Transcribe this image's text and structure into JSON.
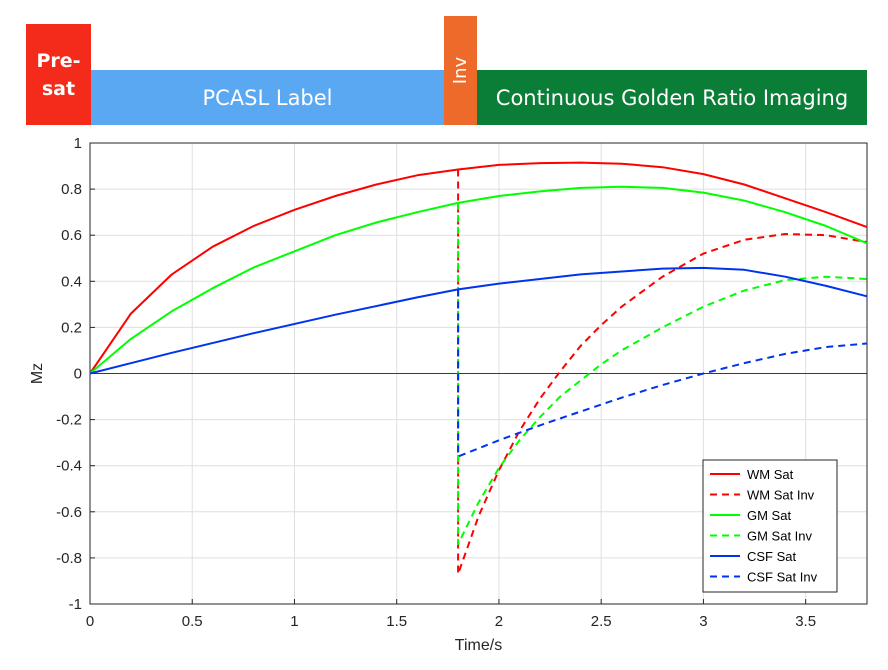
{
  "phases": {
    "presat": {
      "label": "Pre-\nsat",
      "color": "#f42a1a"
    },
    "pcasl": {
      "label": "PCASL Label",
      "color": "#5aa8f2"
    },
    "inv": {
      "label": "Inv",
      "color": "#ee6a2a"
    },
    "imaging": {
      "label": "Continuous Golden Ratio Imaging",
      "color": "#0a7d36"
    }
  },
  "chart_data": {
    "type": "line",
    "xlabel": "Time/s",
    "ylabel": "Mz",
    "xlim": [
      0,
      3.8
    ],
    "ylim": [
      -1,
      1
    ],
    "xticks": [
      "0",
      "0.5",
      "1",
      "1.5",
      "2",
      "2.5",
      "3",
      "3.5"
    ],
    "yticks": [
      "-1",
      "-0.8",
      "-0.6",
      "-0.4",
      "-0.2",
      "0",
      "0.2",
      "0.4",
      "0.6",
      "0.8",
      "1"
    ],
    "grid": true,
    "legend": "bottom-right",
    "series": [
      {
        "name": "WM Sat",
        "color": "#ff0000",
        "style": "solid",
        "x": [
          0,
          0.2,
          0.4,
          0.6,
          0.8,
          1.0,
          1.2,
          1.4,
          1.6,
          1.8,
          2.0,
          2.2,
          2.4,
          2.6,
          2.8,
          3.0,
          3.2,
          3.4,
          3.6,
          3.8
        ],
        "y": [
          0,
          0.26,
          0.43,
          0.55,
          0.64,
          0.71,
          0.77,
          0.82,
          0.86,
          0.885,
          0.905,
          0.913,
          0.915,
          0.91,
          0.895,
          0.865,
          0.82,
          0.76,
          0.7,
          0.635
        ]
      },
      {
        "name": "WM Sat Inv",
        "color": "#ff0000",
        "style": "dashed",
        "x": [
          1.8,
          1.8,
          1.9,
          2.0,
          2.1,
          2.2,
          2.3,
          2.4,
          2.5,
          2.6,
          2.8,
          3.0,
          3.2,
          3.4,
          3.6,
          3.8
        ],
        "y": [
          0.885,
          -0.87,
          -0.62,
          -0.42,
          -0.25,
          -0.11,
          0.01,
          0.12,
          0.21,
          0.29,
          0.42,
          0.52,
          0.58,
          0.605,
          0.6,
          0.57
        ]
      },
      {
        "name": "GM Sat",
        "color": "#00ff00",
        "style": "solid",
        "x": [
          0,
          0.2,
          0.4,
          0.6,
          0.8,
          1.0,
          1.2,
          1.4,
          1.6,
          1.8,
          2.0,
          2.2,
          2.4,
          2.6,
          2.8,
          3.0,
          3.2,
          3.4,
          3.6,
          3.8
        ],
        "y": [
          0,
          0.15,
          0.27,
          0.37,
          0.46,
          0.53,
          0.6,
          0.655,
          0.7,
          0.74,
          0.77,
          0.79,
          0.805,
          0.81,
          0.805,
          0.785,
          0.75,
          0.7,
          0.64,
          0.565
        ]
      },
      {
        "name": "GM Sat Inv",
        "color": "#00ff00",
        "style": "dashed",
        "x": [
          1.8,
          1.8,
          1.9,
          2.0,
          2.1,
          2.2,
          2.3,
          2.4,
          2.5,
          2.6,
          2.8,
          3.0,
          3.2,
          3.4,
          3.6,
          3.8
        ],
        "y": [
          0.74,
          -0.74,
          -0.56,
          -0.41,
          -0.29,
          -0.19,
          -0.1,
          -0.03,
          0.04,
          0.1,
          0.2,
          0.29,
          0.36,
          0.405,
          0.42,
          0.41
        ]
      },
      {
        "name": "CSF Sat",
        "color": "#0033ee",
        "style": "solid",
        "x": [
          0,
          0.4,
          0.8,
          1.2,
          1.6,
          1.8,
          2.0,
          2.4,
          2.8,
          3.0,
          3.2,
          3.4,
          3.6,
          3.8
        ],
        "y": [
          0,
          0.09,
          0.175,
          0.255,
          0.33,
          0.365,
          0.39,
          0.43,
          0.455,
          0.458,
          0.45,
          0.42,
          0.38,
          0.335
        ]
      },
      {
        "name": "CSF Sat Inv",
        "color": "#0033ee",
        "style": "dashed",
        "x": [
          1.8,
          1.8,
          2.0,
          2.2,
          2.4,
          2.6,
          2.8,
          3.0,
          3.2,
          3.4,
          3.6,
          3.8
        ],
        "y": [
          0.365,
          -0.36,
          -0.29,
          -0.225,
          -0.165,
          -0.105,
          -0.05,
          0.0,
          0.045,
          0.085,
          0.115,
          0.13
        ]
      }
    ]
  }
}
